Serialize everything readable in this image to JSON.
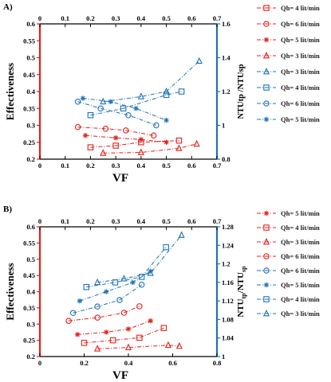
{
  "chart_data": [
    {
      "panel": "A)",
      "type": "line",
      "xlabel": "VF",
      "ylabel_left": "Effectiveness",
      "ylabel_right": "NTUtp /NTUsp",
      "x_bottom_lim": [
        0,
        0.7
      ],
      "x_top_lim": [
        0,
        0.7
      ],
      "y_left_lim": [
        0.2,
        0.6
      ],
      "y_right_lim": [
        0.8,
        1.6
      ],
      "x_ticks": [
        "0",
        "0.1",
        "0.2",
        "0.3",
        "0.4",
        "0.5",
        "0.6",
        "0.7"
      ],
      "x_top_ticks": [
        "0",
        "0.1",
        "0.2",
        "0.3",
        "0.4",
        "0.5",
        "0.6",
        "0.7"
      ],
      "y_left_ticks": [
        "0.2",
        "0.25",
        "0.3",
        "0.35",
        "0.4",
        "0.45",
        "0.5",
        "0.55",
        "0.6"
      ],
      "y_right_ticks": [
        "0.8",
        "1",
        "1.2",
        "1.4",
        "1.6"
      ],
      "series": [
        {
          "name": "Qh= 4 lit/min",
          "color": "#e0201c",
          "marker": "square",
          "axis": "left",
          "dash": "dashdot",
          "x": [
            0.2,
            0.3,
            0.4,
            0.55
          ],
          "y": [
            0.235,
            0.24,
            0.25,
            0.255
          ]
        },
        {
          "name": "Qh= 6 lit/min",
          "color": "#e0201c",
          "marker": "circle",
          "axis": "left",
          "dash": "dashdot",
          "x": [
            0.15,
            0.26,
            0.34,
            0.45
          ],
          "y": [
            0.295,
            0.29,
            0.285,
            0.27
          ]
        },
        {
          "name": "Qh= 5 lit/min",
          "color": "#e0201c",
          "marker": "star",
          "axis": "left",
          "dash": "dashdot",
          "x": [
            0.18,
            0.3,
            0.4,
            0.5
          ],
          "y": [
            0.27,
            0.263,
            0.258,
            0.25
          ]
        },
        {
          "name": "Qh= 3 lit/min",
          "color": "#e0201c",
          "marker": "triangle",
          "axis": "left",
          "dash": "dashdot",
          "x": [
            0.25,
            0.4,
            0.55,
            0.62
          ],
          "y": [
            0.218,
            0.22,
            0.232,
            0.245
          ]
        },
        {
          "name": "Qh= 3 lit/min",
          "color": "#1f72b8",
          "marker": "triangle",
          "axis": "right",
          "dash": "dashdot",
          "x": [
            0.25,
            0.4,
            0.5,
            0.63
          ],
          "y": [
            1.14,
            1.17,
            1.2,
            1.38
          ]
        },
        {
          "name": "Qh= 4 lit/min",
          "color": "#1f72b8",
          "marker": "square",
          "axis": "right",
          "dash": "dashdot",
          "x": [
            0.2,
            0.33,
            0.5,
            0.56
          ],
          "y": [
            1.06,
            1.1,
            1.18,
            1.2
          ]
        },
        {
          "name": "Qh= 6 lit/min",
          "color": "#1f72b8",
          "marker": "circle",
          "axis": "right",
          "dash": "dashdot",
          "x": [
            0.15,
            0.24,
            0.35,
            0.46
          ],
          "y": [
            1.14,
            1.1,
            1.06,
            1.0
          ]
        },
        {
          "name": "Qh= 5 lit/min",
          "color": "#1f72b8",
          "marker": "star",
          "axis": "right",
          "dash": "dashdot",
          "x": [
            0.17,
            0.28,
            0.38,
            0.5
          ],
          "y": [
            1.16,
            1.14,
            1.1,
            1.03
          ]
        }
      ]
    },
    {
      "panel": "B)",
      "type": "line",
      "xlabel": "VF",
      "ylabel_left": "Effectiveness",
      "ylabel_right_main": "NTU",
      "ylabel_right_sub1": "tp",
      "ylabel_right_mid": "/NTU",
      "ylabel_right_sub2": "sp",
      "x_bottom_lim": [
        0,
        0.8
      ],
      "x_top_lim": [
        0,
        0.7
      ],
      "y_left_lim": [
        0.2,
        0.6
      ],
      "y_right_lim": [
        1.0,
        1.28
      ],
      "x_ticks": [
        "0",
        "0.2",
        "0.4",
        "0.6",
        "0.8"
      ],
      "x_top_ticks": [
        "0",
        "0.1",
        "0.2",
        "0.3",
        "0.4",
        "0.5",
        "0.6",
        "0.7"
      ],
      "y_left_ticks": [
        "0.2",
        "0.25",
        "0.3",
        "0.35",
        "0.4",
        "0.45",
        "0.5",
        "0.55",
        "0.6"
      ],
      "y_right_ticks": [
        "1",
        "1.04",
        "1.08",
        "1.12",
        "1.16",
        "1.2",
        "1.24",
        "1.28"
      ],
      "series": [
        {
          "name": "Qh= 5 lit/min",
          "color": "#e0201c",
          "marker": "star",
          "axis": "left",
          "dash": "dashdot",
          "x": [
            0.17,
            0.3,
            0.4,
            0.5
          ],
          "y": [
            0.268,
            0.275,
            0.285,
            0.31
          ]
        },
        {
          "name": "Qh= 4 lit/min",
          "color": "#e0201c",
          "marker": "square",
          "axis": "left",
          "dash": "dashdot",
          "x": [
            0.2,
            0.33,
            0.45,
            0.56
          ],
          "y": [
            0.242,
            0.25,
            0.258,
            0.288
          ]
        },
        {
          "name": "Qh= 3 lit/min",
          "color": "#e0201c",
          "marker": "triangle",
          "axis": "left",
          "dash": "dashdot",
          "x": [
            0.26,
            0.4,
            0.58,
            0.63
          ],
          "y": [
            0.224,
            0.228,
            0.235,
            0.232
          ]
        },
        {
          "name": "Qh= 6 lit/min",
          "color": "#e0201c",
          "marker": "circle",
          "axis": "left",
          "dash": "dashdot",
          "x": [
            0.13,
            0.26,
            0.38,
            0.45
          ],
          "y": [
            0.31,
            0.32,
            0.335,
            0.355
          ]
        },
        {
          "name": "Qh= 6 lit/min",
          "color": "#1f72b8",
          "marker": "circle",
          "axis": "right",
          "dash": "dashdot",
          "x": [
            0.15,
            0.26,
            0.36,
            0.46
          ],
          "y": [
            1.094,
            1.108,
            1.122,
            1.155
          ]
        },
        {
          "name": "Qh= 5 lit/min",
          "color": "#1f72b8",
          "marker": "star",
          "axis": "right",
          "dash": "dashdot",
          "x": [
            0.18,
            0.3,
            0.42,
            0.5
          ],
          "y": [
            1.12,
            1.14,
            1.16,
            1.184
          ]
        },
        {
          "name": "Qh= 4 lit/min",
          "color": "#1f72b8",
          "marker": "square",
          "axis": "right",
          "dash": "dashdot",
          "x": [
            0.21,
            0.34,
            0.46,
            0.57
          ],
          "y": [
            1.15,
            1.16,
            1.172,
            1.236
          ]
        },
        {
          "name": "Qh= 3 lit/min",
          "color": "#1f72b8",
          "marker": "triangle",
          "axis": "right",
          "dash": "dashdot",
          "x": [
            0.26,
            0.38,
            0.5,
            0.64
          ],
          "y": [
            1.16,
            1.168,
            1.18,
            1.262
          ]
        }
      ]
    }
  ]
}
